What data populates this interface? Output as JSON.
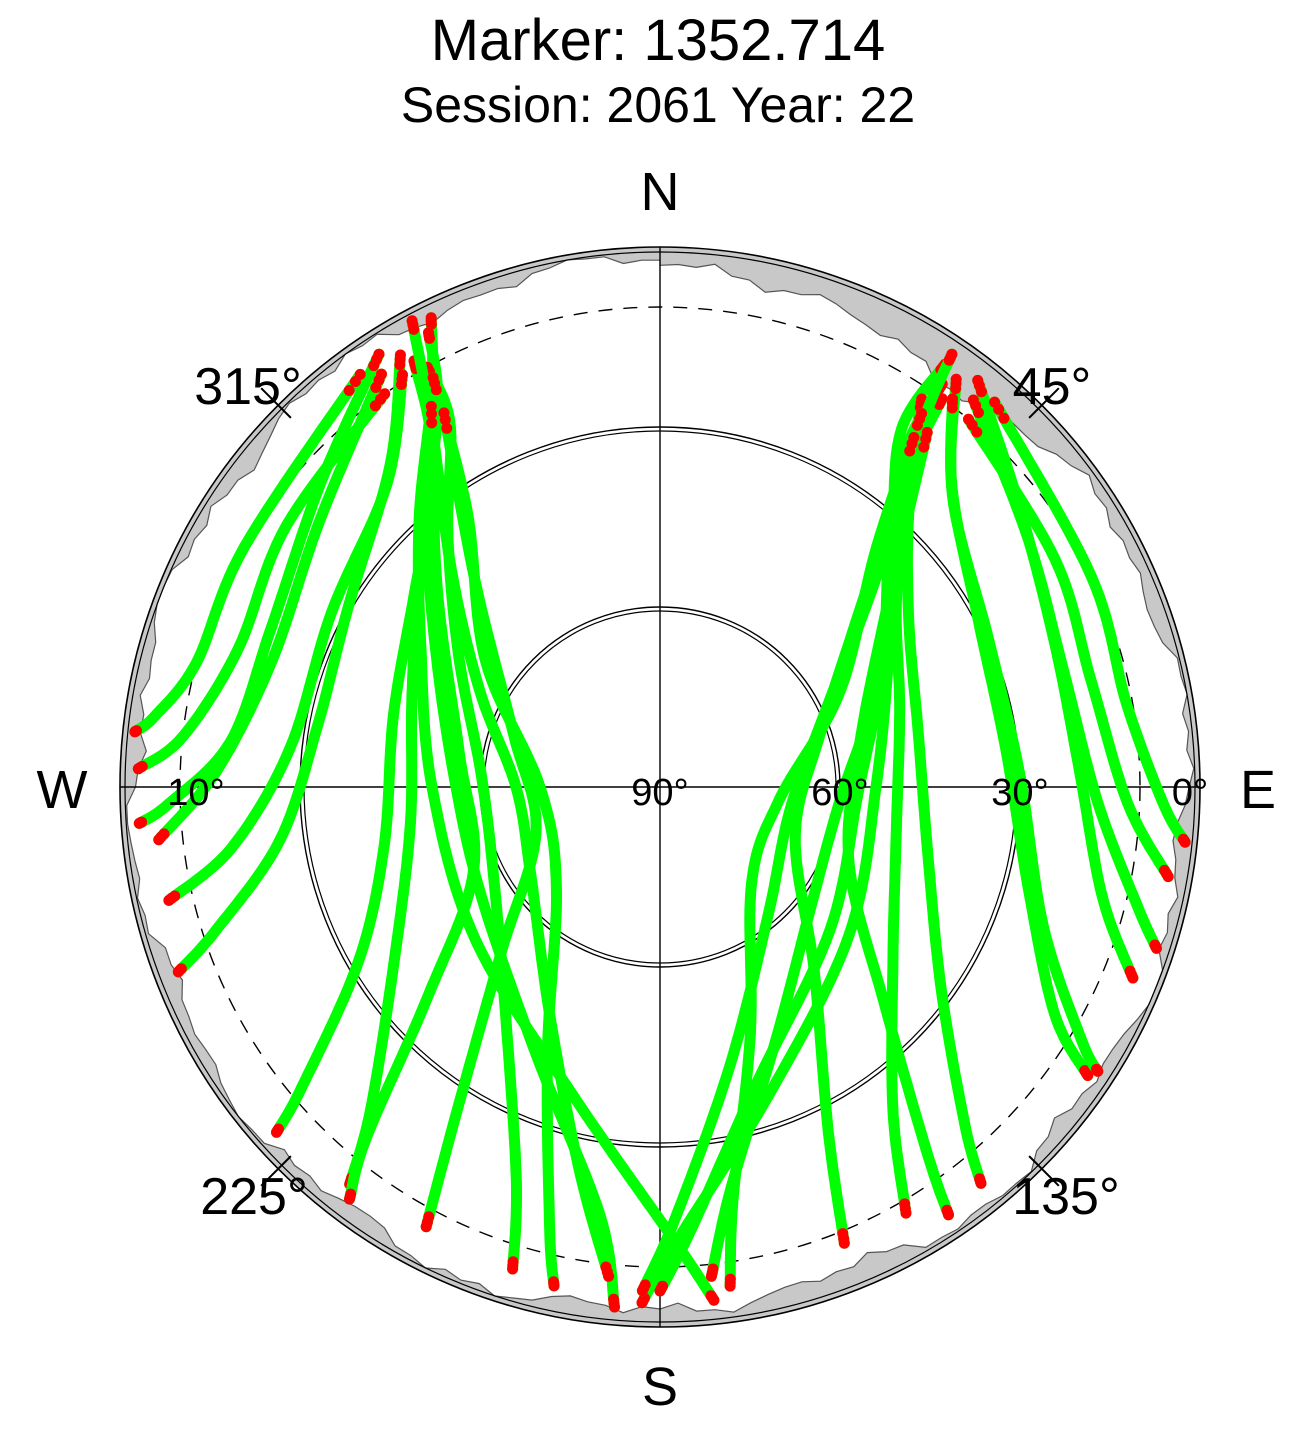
{
  "chart_data": {
    "type": "scatter",
    "title": "Marker: 1352.714",
    "subtitle": "Session: 2061 Year: 22",
    "projection": "polar-skyplot",
    "compass": {
      "north": "N",
      "east": "E",
      "south": "S",
      "west": "W"
    },
    "azimuth_labels": [
      "45°",
      "135°",
      "225°",
      "315°"
    ],
    "azimuth_label_values": [
      45,
      135,
      225,
      315
    ],
    "elevation_labels": [
      "0°",
      "10°",
      "30°",
      "60°",
      "90°"
    ],
    "elevation_label_values": [
      0,
      10,
      30,
      60,
      90
    ],
    "elevation_circles_deg": [
      30,
      60
    ],
    "cutoff_elevation_deg": 10,
    "colors": {
      "track": "#00ff00",
      "track_edge": "#ff0000",
      "mask_fill": "#c8c8c8",
      "mask_light": "#e6e6e6",
      "grid": "#000000"
    },
    "series": [
      {
        "values": [
          [
            334,
            3
          ],
          [
            330,
            14
          ],
          [
            318,
            30
          ],
          [
            300,
            44
          ],
          [
            270,
            52
          ],
          [
            230,
            50
          ],
          [
            195,
            36
          ],
          [
            178,
            14
          ],
          [
            174,
            4
          ]
        ]
      },
      {
        "values": [
          [
            333,
            5
          ],
          [
            330,
            16
          ],
          [
            318,
            32
          ],
          [
            300,
            47
          ],
          [
            270,
            56
          ],
          [
            238,
            55
          ],
          [
            205,
            41
          ],
          [
            188,
            18
          ],
          [
            185,
            3
          ]
        ]
      },
      {
        "values": [
          [
            331,
            10
          ],
          [
            330,
            20
          ],
          [
            320,
            35
          ],
          [
            303,
            50
          ],
          [
            275,
            60
          ],
          [
            244,
            59
          ],
          [
            214,
            44
          ],
          [
            200,
            20
          ],
          [
            197,
            6
          ]
        ]
      },
      {
        "values": [
          [
            330,
            8
          ],
          [
            326,
            22
          ],
          [
            312,
            36
          ],
          [
            290,
            46
          ],
          [
            262,
            48
          ],
          [
            238,
            38
          ],
          [
            222,
            18
          ],
          [
            218,
            6
          ]
        ]
      },
      {
        "values": [
          [
            330,
            12
          ],
          [
            324,
            26
          ],
          [
            308,
            38
          ],
          [
            285,
            44
          ],
          [
            258,
            43
          ],
          [
            240,
            32
          ],
          [
            230,
            12
          ],
          [
            228,
            4
          ]
        ]
      },
      {
        "values": [
          [
            329,
            6
          ],
          [
            320,
            20
          ],
          [
            300,
            30
          ],
          [
            280,
            32
          ],
          [
            262,
            26
          ],
          [
            252,
            12
          ],
          [
            249,
            4
          ]
        ]
      },
      {
        "values": [
          [
            328,
            9
          ],
          [
            318,
            22
          ],
          [
            298,
            28
          ],
          [
            276,
            28
          ],
          [
            262,
            18
          ],
          [
            257,
            6
          ]
        ]
      },
      {
        "values": [
          [
            327,
            4
          ],
          [
            312,
            14
          ],
          [
            292,
            20
          ],
          [
            276,
            18
          ],
          [
            268,
            8
          ],
          [
            266,
            3
          ]
        ]
      },
      {
        "values": [
          [
            326,
            7
          ],
          [
            308,
            18
          ],
          [
            288,
            22
          ],
          [
            272,
            16
          ],
          [
            264,
            6
          ]
        ]
      },
      {
        "values": [
          [
            325,
            10
          ],
          [
            305,
            14
          ],
          [
            288,
            16
          ],
          [
            276,
            10
          ],
          [
            272,
            3
          ]
        ]
      },
      {
        "values": [
          [
            324,
            5
          ],
          [
            300,
            10
          ],
          [
            285,
            10
          ],
          [
            278,
            5
          ],
          [
            276,
            2
          ]
        ]
      },
      {
        "values": [
          [
            332,
            2
          ],
          [
            328,
            18
          ],
          [
            316,
            40
          ],
          [
            298,
            56
          ],
          [
            270,
            66
          ],
          [
            236,
            64
          ],
          [
            206,
            48
          ],
          [
            192,
            25
          ],
          [
            186,
            8
          ]
        ]
      },
      {
        "values": [
          [
            331,
            12
          ],
          [
            325,
            34
          ],
          [
            306,
            54
          ],
          [
            270,
            70
          ],
          [
            226,
            66
          ],
          [
            203,
            42
          ],
          [
            194,
            14
          ],
          [
            192,
            5
          ]
        ]
      },
      {
        "values": [
          [
            330,
            18
          ],
          [
            318,
            44
          ],
          [
            290,
            64
          ],
          [
            250,
            68
          ],
          [
            224,
            52
          ],
          [
            212,
            26
          ],
          [
            208,
            7
          ]
        ]
      },
      {
        "values": [
          [
            329,
            16
          ],
          [
            312,
            40
          ],
          [
            280,
            56
          ],
          [
            246,
            56
          ],
          [
            228,
            38
          ],
          [
            220,
            14
          ],
          [
            217,
            4
          ]
        ]
      },
      {
        "values": [
          [
            34,
            5
          ],
          [
            34,
            18
          ],
          [
            42,
            32
          ],
          [
            60,
            46
          ],
          [
            90,
            54
          ],
          [
            128,
            50
          ],
          [
            160,
            36
          ],
          [
            178,
            14
          ],
          [
            182,
            4
          ]
        ]
      },
      {
        "values": [
          [
            35,
            8
          ],
          [
            36,
            20
          ],
          [
            44,
            35
          ],
          [
            62,
            48
          ],
          [
            92,
            57
          ],
          [
            130,
            53
          ],
          [
            162,
            38
          ],
          [
            176,
            16
          ],
          [
            180,
            6
          ]
        ]
      },
      {
        "values": [
          [
            36,
            10
          ],
          [
            38,
            22
          ],
          [
            46,
            36
          ],
          [
            65,
            50
          ],
          [
            95,
            60
          ],
          [
            128,
            58
          ],
          [
            155,
            44
          ],
          [
            170,
            22
          ],
          [
            174,
            8
          ]
        ]
      },
      {
        "values": [
          [
            34,
            12
          ],
          [
            40,
            26
          ],
          [
            52,
            40
          ],
          [
            72,
            48
          ],
          [
            100,
            50
          ],
          [
            126,
            42
          ],
          [
            144,
            24
          ],
          [
            150,
            8
          ]
        ]
      },
      {
        "values": [
          [
            35,
            14
          ],
          [
            42,
            28
          ],
          [
            56,
            40
          ],
          [
            78,
            46
          ],
          [
            104,
            44
          ],
          [
            126,
            32
          ],
          [
            138,
            14
          ],
          [
            141,
            5
          ]
        ]
      },
      {
        "values": [
          [
            36,
            6
          ],
          [
            44,
            20
          ],
          [
            62,
            30
          ],
          [
            84,
            32
          ],
          [
            106,
            26
          ],
          [
            120,
            14
          ],
          [
            124,
            4
          ]
        ]
      },
      {
        "values": [
          [
            37,
            9
          ],
          [
            46,
            22
          ],
          [
            66,
            30
          ],
          [
            88,
            30
          ],
          [
            110,
            22
          ],
          [
            121,
            8
          ],
          [
            123,
            3
          ]
        ]
      },
      {
        "values": [
          [
            38,
            4
          ],
          [
            52,
            14
          ],
          [
            70,
            20
          ],
          [
            88,
            20
          ],
          [
            104,
            14
          ],
          [
            112,
            5
          ]
        ]
      },
      {
        "values": [
          [
            39,
            7
          ],
          [
            56,
            16
          ],
          [
            74,
            20
          ],
          [
            92,
            17
          ],
          [
            104,
            8
          ],
          [
            108,
            3
          ]
        ]
      },
      {
        "values": [
          [
            40,
            10
          ],
          [
            60,
            14
          ],
          [
            76,
            16
          ],
          [
            92,
            12
          ],
          [
            100,
            4
          ]
        ]
      },
      {
        "values": [
          [
            41,
            5
          ],
          [
            64,
            10
          ],
          [
            80,
            11
          ],
          [
            92,
            6
          ],
          [
            96,
            2
          ]
        ]
      },
      {
        "values": [
          [
            34,
            3
          ],
          [
            36,
            16
          ],
          [
            46,
            40
          ],
          [
            66,
            60
          ],
          [
            100,
            68
          ],
          [
            140,
            62
          ],
          [
            166,
            42
          ],
          [
            178,
            18
          ],
          [
            182,
            6
          ]
        ]
      },
      {
        "values": [
          [
            35,
            14
          ],
          [
            42,
            36
          ],
          [
            62,
            56
          ],
          [
            96,
            70
          ],
          [
            136,
            68
          ],
          [
            160,
            46
          ],
          [
            170,
            20
          ],
          [
            172,
            6
          ]
        ]
      },
      {
        "values": [
          [
            36,
            18
          ],
          [
            46,
            42
          ],
          [
            72,
            62
          ],
          [
            110,
            66
          ],
          [
            140,
            50
          ],
          [
            154,
            26
          ],
          [
            158,
            8
          ]
        ]
      },
      {
        "values": [
          [
            37,
            16
          ],
          [
            50,
            40
          ],
          [
            78,
            56
          ],
          [
            112,
            56
          ],
          [
            134,
            38
          ],
          [
            144,
            14
          ],
          [
            146,
            4
          ]
        ]
      }
    ]
  }
}
